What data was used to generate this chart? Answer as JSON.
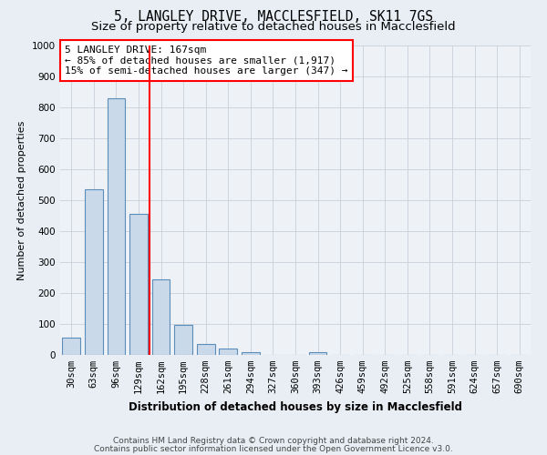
{
  "title1": "5, LANGLEY DRIVE, MACCLESFIELD, SK11 7GS",
  "title2": "Size of property relative to detached houses in Macclesfield",
  "xlabel": "Distribution of detached houses by size in Macclesfield",
  "ylabel": "Number of detached properties",
  "categories": [
    "30sqm",
    "63sqm",
    "96sqm",
    "129sqm",
    "162sqm",
    "195sqm",
    "228sqm",
    "261sqm",
    "294sqm",
    "327sqm",
    "360sqm",
    "393sqm",
    "426sqm",
    "459sqm",
    "492sqm",
    "525sqm",
    "558sqm",
    "591sqm",
    "624sqm",
    "657sqm",
    "690sqm"
  ],
  "values": [
    55,
    535,
    830,
    455,
    245,
    98,
    35,
    20,
    10,
    0,
    0,
    10,
    0,
    0,
    0,
    0,
    0,
    0,
    0,
    0,
    0
  ],
  "bar_color": "#c9d9ea",
  "bar_edge_color": "#5b8db8",
  "red_line_index": 4,
  "ylim": [
    0,
    1000
  ],
  "yticks": [
    0,
    100,
    200,
    300,
    400,
    500,
    600,
    700,
    800,
    900,
    1000
  ],
  "annotation_text": "5 LANGLEY DRIVE: 167sqm\n← 85% of detached houses are smaller (1,917)\n15% of semi-detached houses are larger (347) →",
  "footnote1": "Contains HM Land Registry data © Crown copyright and database right 2024.",
  "footnote2": "Contains public sector information licensed under the Open Government Licence v3.0.",
  "bg_color": "#e8eef4",
  "plot_bg_color": "#eef2f7",
  "grid_color": "#c8d0da",
  "title1_fontsize": 10.5,
  "title2_fontsize": 9.5,
  "xlabel_fontsize": 8.5,
  "ylabel_fontsize": 8,
  "tick_fontsize": 7.5,
  "annot_fontsize": 8
}
